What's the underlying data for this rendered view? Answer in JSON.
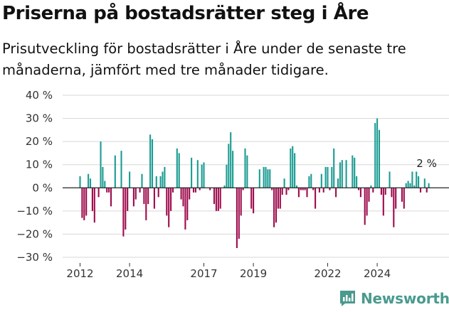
{
  "title": "Priserna på bostadsrätter steg i Åre",
  "subtitle": "Prisutveckling för bostadsrätter i Åre under de senaste tre månaderna, jämfört med tre månader tidigare.",
  "brand": "Newsworthy",
  "chart_data": {
    "type": "bar",
    "ylim": [
      -30,
      40
    ],
    "yticks": [
      40,
      30,
      20,
      10,
      0,
      -10,
      -20,
      -30
    ],
    "ytick_labels": [
      "40 %",
      "30 %",
      "20 %",
      "10 %",
      "0 %",
      "−10 %",
      "−20 %",
      "−30 %"
    ],
    "x_start": "2012-01",
    "xticks": [
      "2012",
      "2014",
      "2017",
      "2019",
      "2022",
      "2024"
    ],
    "grid": true,
    "colors": {
      "positive": "#1a9c92",
      "negative": "#9e0a4c"
    },
    "annotation": {
      "text": "2 %",
      "value": 2,
      "at": "last"
    },
    "values": [
      5,
      -13,
      -14,
      -12,
      6,
      4,
      -10,
      -15,
      0,
      -4,
      20,
      9,
      3,
      -2,
      -2,
      -8,
      0,
      14,
      0,
      0,
      16,
      -21,
      -18,
      -10,
      7,
      0,
      -8,
      -5,
      0,
      -2,
      6,
      -7,
      -14,
      -7,
      23,
      21,
      -9,
      5,
      -4,
      5,
      7,
      9,
      -12,
      -17,
      -10,
      -2,
      0,
      17,
      15,
      -5,
      -8,
      -18,
      -14,
      -5,
      13,
      -2,
      -2,
      12,
      -1,
      10,
      11,
      0,
      0,
      -1,
      0,
      -7,
      -10,
      -10,
      -9,
      0,
      1,
      10,
      19,
      24,
      16,
      0,
      -26,
      -22,
      -12,
      -1,
      17,
      14,
      0,
      -9,
      -11,
      0,
      0,
      8,
      0,
      9,
      9,
      8,
      8,
      -1,
      -17,
      -15,
      -9,
      -9,
      -3,
      4,
      -3,
      -1,
      17,
      18,
      15,
      1,
      -4,
      -1,
      -1,
      -1,
      -4,
      5,
      6,
      -1,
      -9,
      0,
      -2,
      6,
      -2,
      9,
      9,
      -1,
      9,
      17,
      -4,
      4,
      11,
      12,
      0,
      12,
      0,
      0,
      14,
      13,
      5,
      -1,
      -4,
      0,
      -16,
      -12,
      -6,
      1,
      -2,
      28,
      30,
      25,
      -3,
      -12,
      -3,
      0,
      7,
      -4,
      -17,
      -9,
      0,
      0,
      -6,
      -9,
      2,
      3,
      2,
      7,
      1,
      7,
      5,
      -2,
      0,
      4,
      -2,
      2
    ]
  }
}
